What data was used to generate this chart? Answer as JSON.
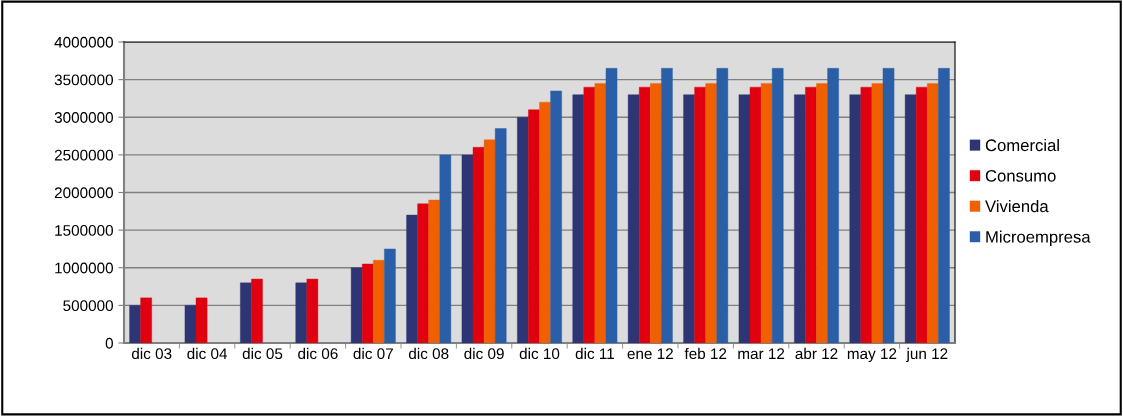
{
  "chart_data": {
    "type": "bar",
    "categories": [
      "dic 03",
      "dic 04",
      "dic 05",
      "dic 06",
      "dic 07",
      "dic 08",
      "dic 09",
      "dic 10",
      "dic 11",
      "ene 12",
      "feb 12",
      "mar 12",
      "abr 12",
      "may 12",
      "jun 12"
    ],
    "series": [
      {
        "name": "Comercial",
        "color": "#2e3575",
        "values": [
          500000,
          500000,
          800000,
          800000,
          1000000,
          1700000,
          2500000,
          3000000,
          3300000,
          3300000,
          3300000,
          3300000,
          3300000,
          3300000,
          3300000
        ]
      },
      {
        "name": "Consumo",
        "color": "#e0000f",
        "values": [
          600000,
          600000,
          850000,
          850000,
          1050000,
          1850000,
          2600000,
          3100000,
          3400000,
          3400000,
          3400000,
          3400000,
          3400000,
          3400000,
          3400000
        ]
      },
      {
        "name": "Vivienda",
        "color": "#f06000",
        "values": [
          null,
          null,
          null,
          null,
          1100000,
          1900000,
          2700000,
          3200000,
          3450000,
          3450000,
          3450000,
          3450000,
          3450000,
          3450000,
          3450000
        ]
      },
      {
        "name": "Microempresa",
        "color": "#2a5fa8",
        "values": [
          null,
          null,
          null,
          null,
          1250000,
          2500000,
          2850000,
          3350000,
          3650000,
          3650000,
          3650000,
          3650000,
          3650000,
          3650000,
          3650000
        ]
      }
    ],
    "ylim": [
      0,
      4000000
    ],
    "yticks": [
      0,
      500000,
      1000000,
      1500000,
      2000000,
      2500000,
      3000000,
      3500000,
      4000000
    ],
    "grid": "y",
    "legend": "right"
  }
}
